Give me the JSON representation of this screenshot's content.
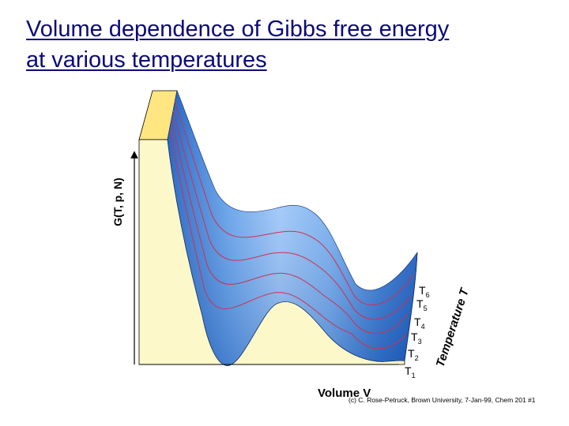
{
  "title": {
    "line1": "Volume dependence of Gibbs free energy",
    "line2": "at various temperatures"
  },
  "y_axis_label": "G(T, p, N)",
  "x_axis_label": "Volume V",
  "temperature_axis_label": "Temperature T",
  "temperatures": [
    {
      "base": "T",
      "sub": "6"
    },
    {
      "base": "T",
      "sub": "5"
    },
    {
      "base": "T",
      "sub": "4"
    },
    {
      "base": "T",
      "sub": "3"
    },
    {
      "base": "T",
      "sub": "2"
    },
    {
      "base": "T",
      "sub": "1"
    }
  ],
  "credit": "(c) C. Rose-Petruck, Brown University, 7-Jan-99, Chem 201 #1",
  "colors": {
    "title": "#0a0a7a",
    "block_face": "#fdf8c9",
    "block_top": "#ffe680",
    "surface_dark": "#1f5fc0",
    "surface_light": "#a9d0ff",
    "isotherm": "#d03050"
  },
  "icons": [
    "arrow-up-icon",
    "arrow-right-icon"
  ]
}
